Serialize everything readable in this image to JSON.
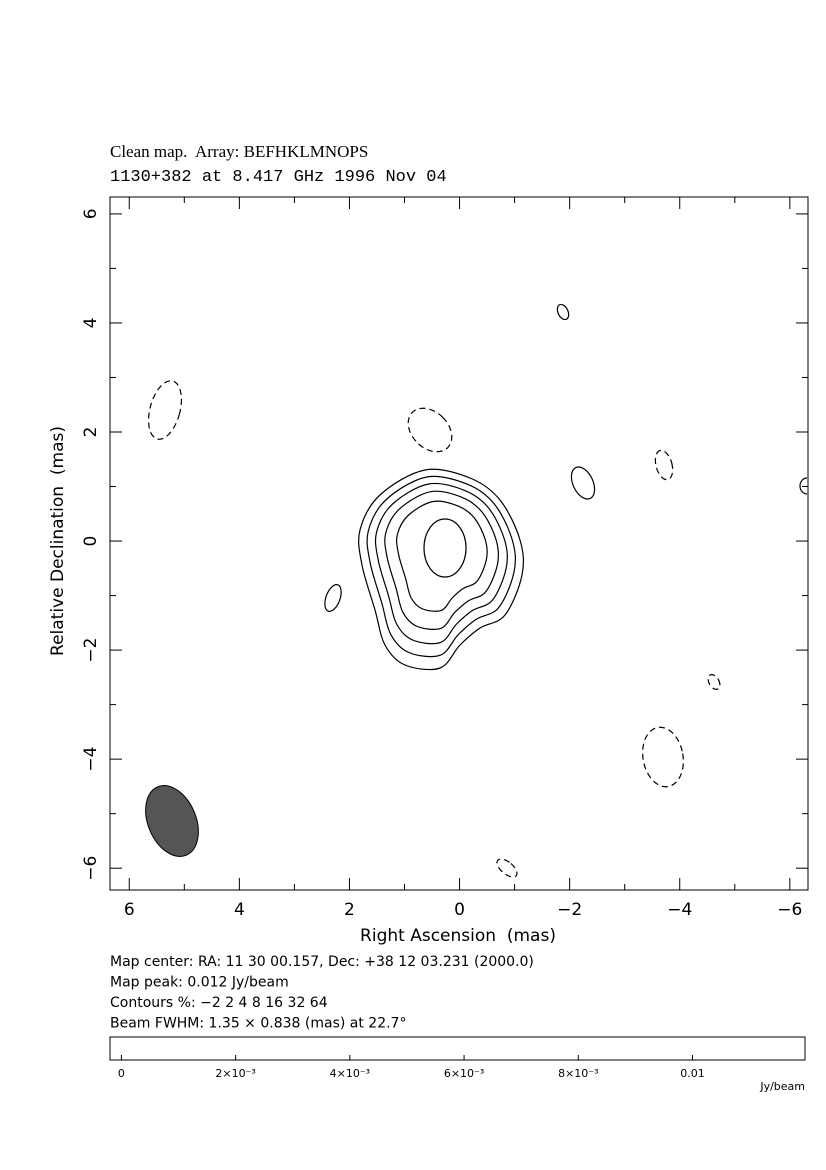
{
  "chart_data": {
    "type": "contour",
    "title": "Clean map.  Array: BEFHKLMNOPS",
    "subtitle": "1130+382 at 8.417 GHz 1996 Nov 04",
    "xlabel": "Right Ascension  (mas)",
    "ylabel": "Relative Declination  (mas)",
    "xlim": [
      6.35,
      -6.33
    ],
    "ylim": [
      -6.4,
      6.31
    ],
    "xticks": [
      6,
      4,
      2,
      0,
      {
        "value": -2,
        "label": "−2"
      },
      {
        "value": -4,
        "label": "−4"
      },
      {
        "value": -6,
        "label": "−6"
      }
    ],
    "yticks": [
      6,
      4,
      2,
      0,
      {
        "value": -2,
        "label": "−2"
      },
      {
        "value": -4,
        "label": "−4"
      },
      {
        "value": -6,
        "label": "−6"
      }
    ],
    "xminorticks": [
      5,
      3,
      1,
      -1,
      -3,
      -5
    ],
    "yminorticks": [
      5,
      3,
      1,
      -1,
      -3,
      -5
    ],
    "notes": [
      "Map center:  RA: 11 30 00.157,  Dec: +38 12 03.231 (2000.0)",
      "Map peak: 0.012 Jy/beam",
      "Contours %: −2 2 4 8 16 32 64",
      "Beam FWHM: 1.35 × 0.838 (mas) at 22.7°"
    ],
    "colorbar": {
      "lim": [
        -0.0002,
        0.01197
      ],
      "ticks": [
        0,
        {
          "value": 0.002,
          "label": "2×10⁻³"
        },
        {
          "value": 0.004,
          "label": "4×10⁻³"
        },
        {
          "value": 0.006,
          "label": "6×10⁻³"
        },
        {
          "value": 0.008,
          "label": "8×10⁻³"
        },
        0.01
      ],
      "label": "Jy/beam"
    }
  }
}
